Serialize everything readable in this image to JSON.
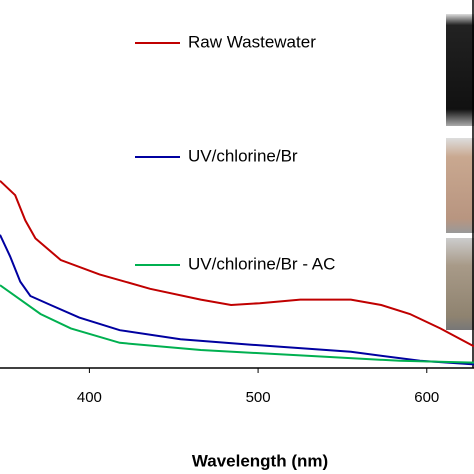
{
  "chart_data": {
    "type": "line",
    "xlabel": "Wavelength (nm)",
    "xlim": [
      347,
      628
    ],
    "xticks": [
      400,
      500,
      600
    ],
    "ylim": [
      0,
      1
    ],
    "series": [
      {
        "name": "Raw Wastewater",
        "color": "#c00000",
        "x": [
          347,
          356,
          362,
          368,
          383,
          406,
          436,
          466,
          484,
          501,
          525,
          555,
          573,
          590,
          608,
          628
        ],
        "values": [
          0.52,
          0.48,
          0.41,
          0.36,
          0.3,
          0.26,
          0.22,
          0.19,
          0.175,
          0.18,
          0.19,
          0.19,
          0.175,
          0.15,
          0.11,
          0.06
        ]
      },
      {
        "name": "UV/chlorine/Br",
        "color": "#0000a0",
        "x": [
          347,
          353,
          359,
          365,
          377,
          394,
          418,
          454,
          495,
          555,
          596,
          628
        ],
        "values": [
          0.37,
          0.31,
          0.24,
          0.2,
          0.175,
          0.14,
          0.105,
          0.08,
          0.065,
          0.045,
          0.02,
          0.01
        ]
      },
      {
        "name": "UV/chlorine/Br - AC",
        "color": "#00b050",
        "x": [
          347,
          359,
          371,
          389,
          418,
          466,
          525,
          584,
          628
        ],
        "values": [
          0.23,
          0.19,
          0.15,
          0.11,
          0.07,
          0.05,
          0.035,
          0.02,
          0.015
        ]
      }
    ]
  }
}
